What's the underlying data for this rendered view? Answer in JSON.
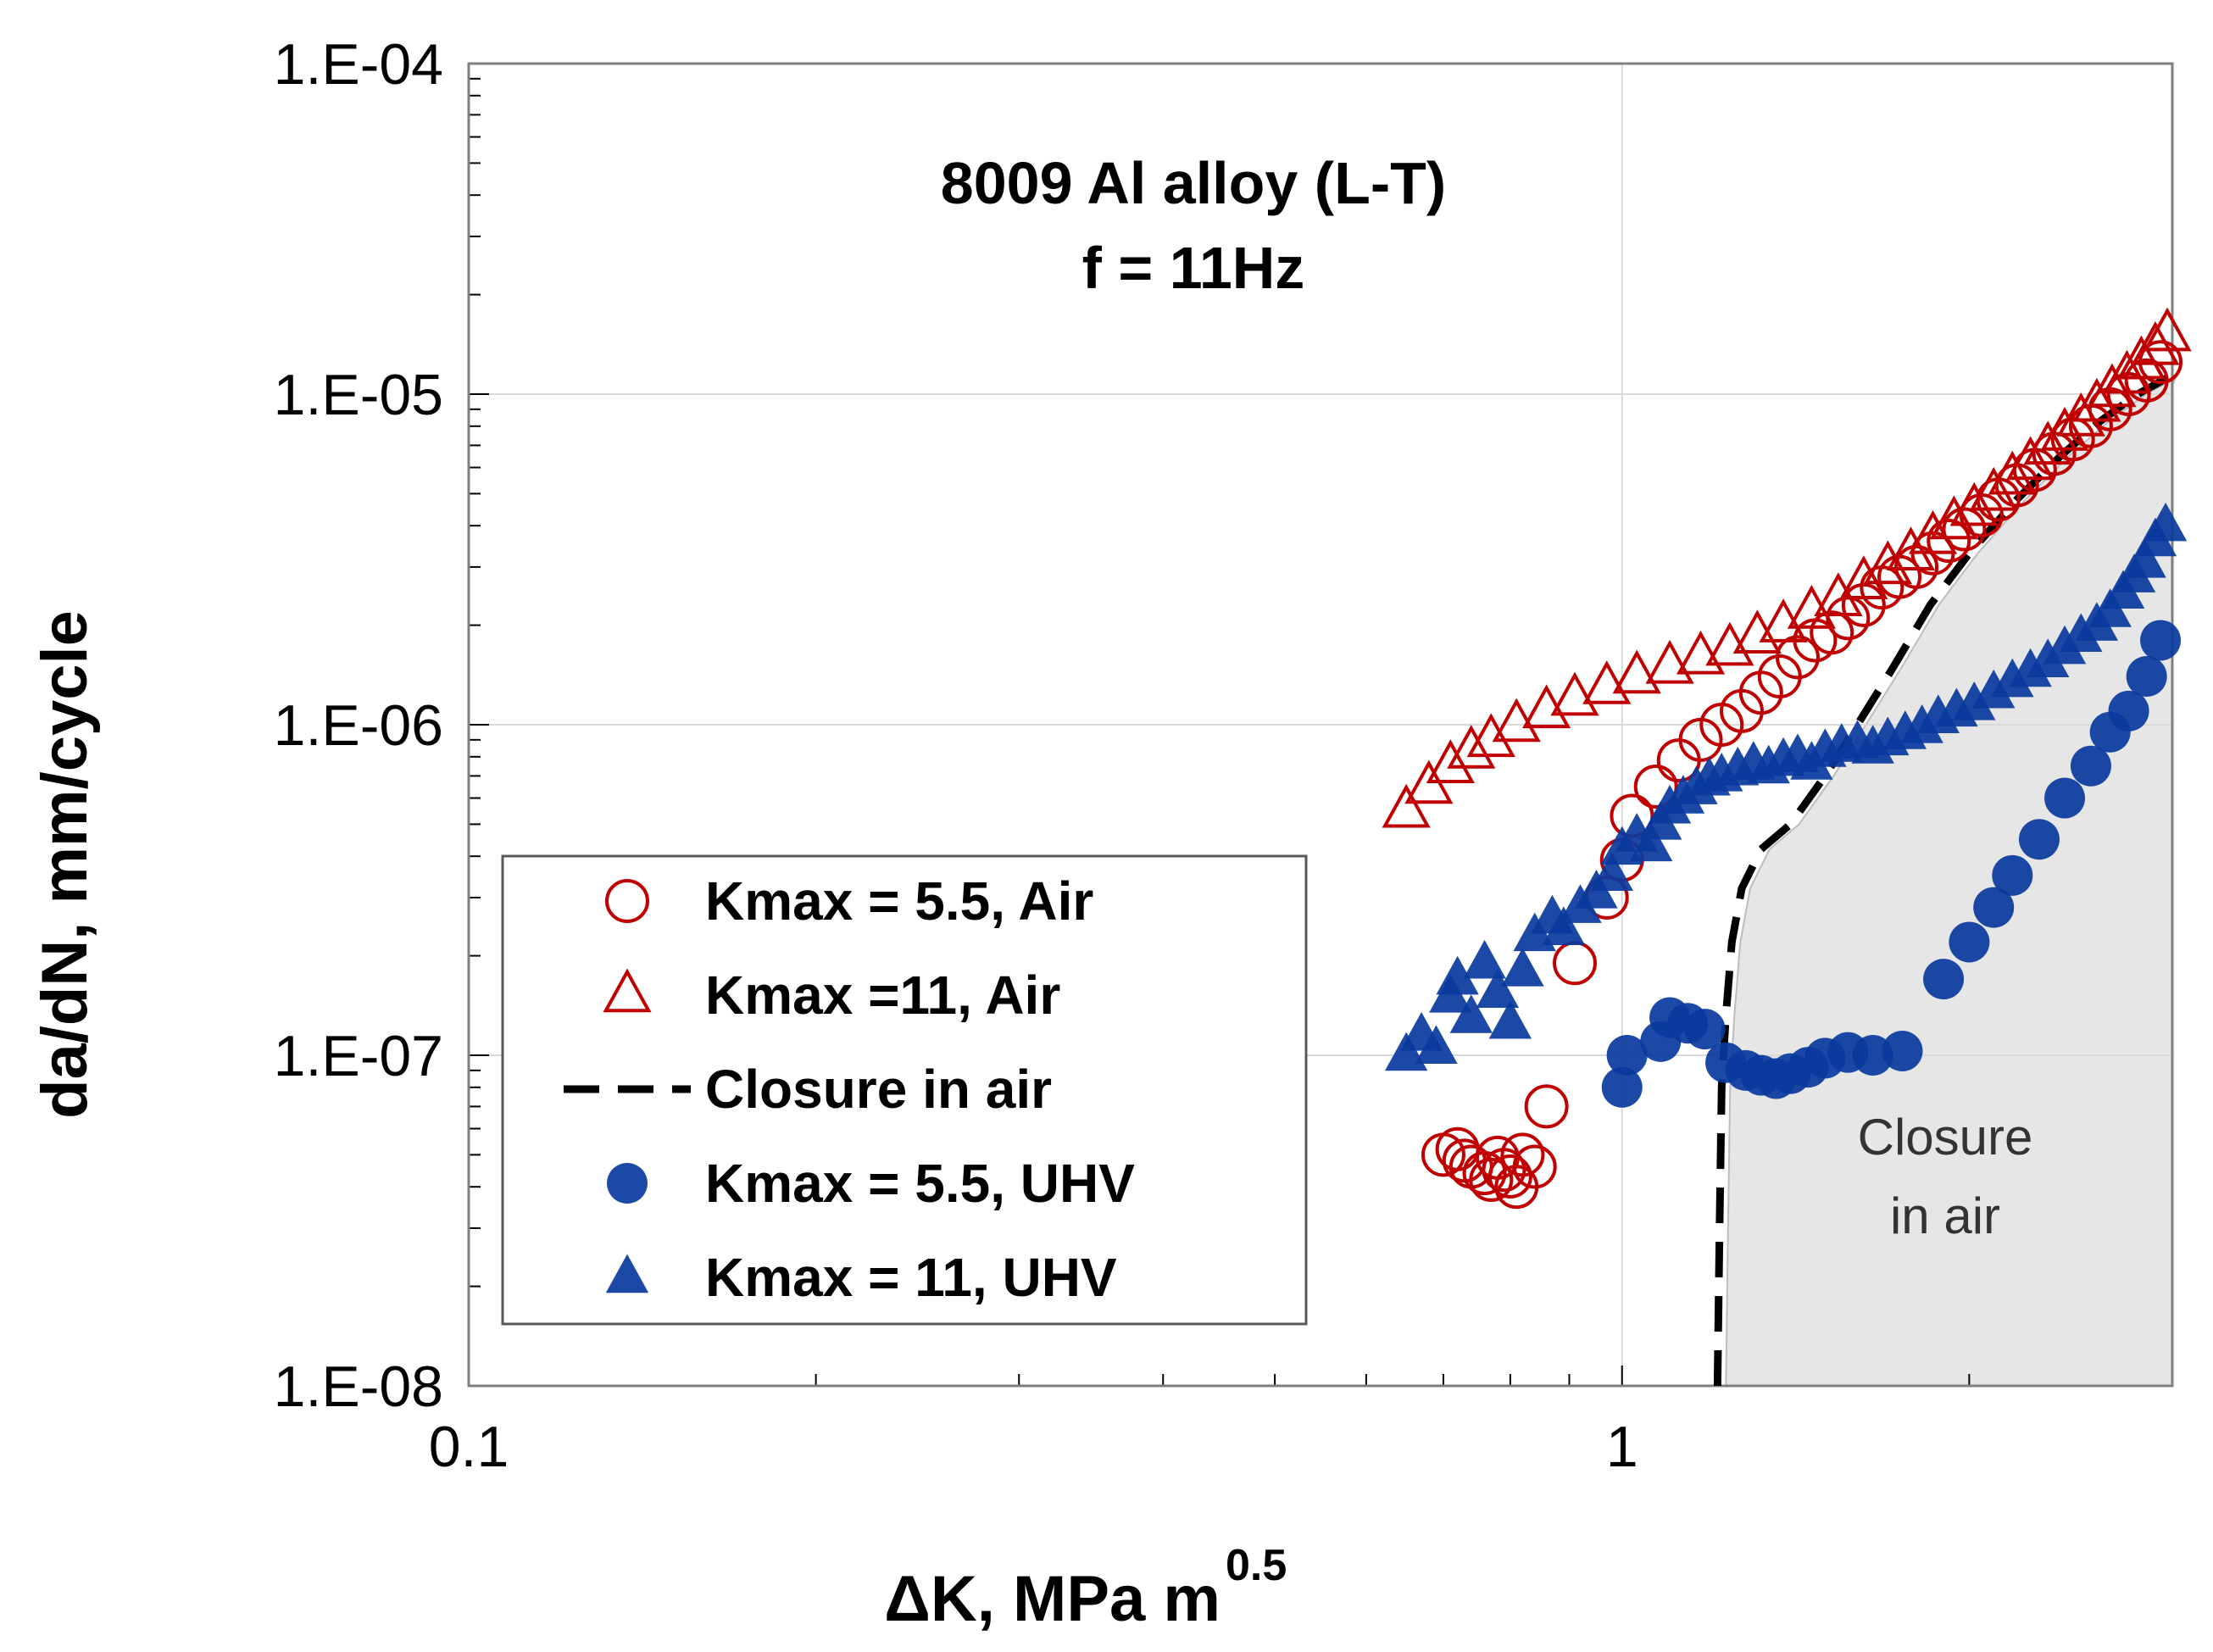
{
  "chart_data": {
    "type": "scatter",
    "title_line1": "8009 Al alloy (L-T)",
    "title_line2": "f = 11Hz",
    "xlabel_main": "ΔK, MPa m",
    "xlabel_sup": "0.5",
    "ylabel": "da/dN, mm/cycle",
    "xscale": "log",
    "yscale": "log",
    "xlim": [
      0.1,
      3
    ],
    "ylim": [
      1e-08,
      0.0001
    ],
    "x_tick_labels": [
      {
        "value": 0.1,
        "label": "0.1"
      },
      {
        "value": 1,
        "label": "1"
      }
    ],
    "y_tick_labels": [
      {
        "value": 0.0001,
        "label": "1.E-04"
      },
      {
        "value": 1e-05,
        "label": "1.E-05"
      },
      {
        "value": 1e-06,
        "label": "1.E-06"
      },
      {
        "value": 1e-07,
        "label": "1.E-07"
      },
      {
        "value": 1e-08,
        "label": "1.E-08"
      }
    ],
    "grid": true,
    "legend_position": "bottom-left",
    "colors": {
      "red": "#c00000",
      "blue": "#0a3a9e",
      "shade": "#e6e6e6"
    },
    "shaded_region_label_line1": "Closure",
    "shaded_region_label_line2": "in air",
    "series": [
      {
        "name": "Kmax = 5.5, Air",
        "marker": "open-circle",
        "color": "#c00000",
        "points": [
          [
            0.7,
            5e-08
          ],
          [
            0.72,
            5.2e-08
          ],
          [
            0.73,
            4.8e-08
          ],
          [
            0.74,
            4.6e-08
          ],
          [
            0.76,
            4.4e-08
          ],
          [
            0.77,
            4.2e-08
          ],
          [
            0.78,
            4.9e-08
          ],
          [
            0.79,
            4.5e-08
          ],
          [
            0.8,
            4.3e-08
          ],
          [
            0.81,
            4e-08
          ],
          [
            0.82,
            5e-08
          ],
          [
            0.84,
            4.6e-08
          ],
          [
            0.86,
            7e-08
          ],
          [
            0.91,
            1.9e-07
          ],
          [
            0.97,
            3e-07
          ],
          [
            1.0,
            3.9e-07
          ],
          [
            1.02,
            5.3e-07
          ],
          [
            1.07,
            6.5e-07
          ],
          [
            1.12,
            7.8e-07
          ],
          [
            1.17,
            9e-07
          ],
          [
            1.22,
            1e-06
          ],
          [
            1.27,
            1.1e-06
          ],
          [
            1.32,
            1.25e-06
          ],
          [
            1.37,
            1.4e-06
          ],
          [
            1.42,
            1.6e-06
          ],
          [
            1.47,
            1.8e-06
          ],
          [
            1.52,
            1.9e-06
          ],
          [
            1.57,
            2.1e-06
          ],
          [
            1.62,
            2.3e-06
          ],
          [
            1.68,
            2.6e-06
          ],
          [
            1.74,
            2.8e-06
          ],
          [
            1.8,
            3e-06
          ],
          [
            1.86,
            3.3e-06
          ],
          [
            1.92,
            3.6e-06
          ],
          [
            1.98,
            3.9e-06
          ],
          [
            2.05,
            4.3e-06
          ],
          [
            2.12,
            4.8e-06
          ],
          [
            2.2,
            5.3e-06
          ],
          [
            2.28,
            5.9e-06
          ],
          [
            2.37,
            6.6e-06
          ],
          [
            2.46,
            7.3e-06
          ],
          [
            2.55,
            8e-06
          ],
          [
            2.65,
            9e-06
          ],
          [
            2.75,
            1e-05
          ],
          [
            2.85,
            1.1e-05
          ],
          [
            2.93,
            1.25e-05
          ]
        ]
      },
      {
        "name": "Kmax =11, Air",
        "marker": "open-triangle",
        "color": "#c00000",
        "points": [
          [
            0.65,
            5.5e-07
          ],
          [
            0.68,
            6.5e-07
          ],
          [
            0.71,
            7.5e-07
          ],
          [
            0.74,
            8.3e-07
          ],
          [
            0.77,
            9e-07
          ],
          [
            0.81,
            1e-06
          ],
          [
            0.86,
            1.1e-06
          ],
          [
            0.91,
            1.2e-06
          ],
          [
            0.97,
            1.3e-06
          ],
          [
            1.03,
            1.4e-06
          ],
          [
            1.1,
            1.5e-06
          ],
          [
            1.17,
            1.6e-06
          ],
          [
            1.24,
            1.7e-06
          ],
          [
            1.31,
            1.85e-06
          ],
          [
            1.38,
            2e-06
          ],
          [
            1.46,
            2.2e-06
          ],
          [
            1.54,
            2.4e-06
          ],
          [
            1.62,
            2.7e-06
          ],
          [
            1.7,
            3e-06
          ],
          [
            1.78,
            3.3e-06
          ],
          [
            1.86,
            3.7e-06
          ],
          [
            1.94,
            4.1e-06
          ],
          [
            2.02,
            4.5e-06
          ],
          [
            2.1,
            5e-06
          ],
          [
            2.18,
            5.6e-06
          ],
          [
            2.26,
            6.2e-06
          ],
          [
            2.34,
            6.9e-06
          ],
          [
            2.42,
            7.6e-06
          ],
          [
            2.5,
            8.4e-06
          ],
          [
            2.58,
            9.3e-06
          ],
          [
            2.66,
            1.03e-05
          ],
          [
            2.74,
            1.13e-05
          ],
          [
            2.82,
            1.25e-05
          ],
          [
            2.9,
            1.38e-05
          ],
          [
            2.97,
            1.52e-05
          ]
        ]
      },
      {
        "name": "Kmax = 5.5, UHV",
        "marker": "filled-circle",
        "color": "#0a3a9e",
        "points": [
          [
            1.0,
            8e-08
          ],
          [
            1.01,
            1e-07
          ],
          [
            1.08,
            1.1e-07
          ],
          [
            1.1,
            1.3e-07
          ],
          [
            1.14,
            1.25e-07
          ],
          [
            1.18,
            1.2e-07
          ],
          [
            1.23,
            9.5e-08
          ],
          [
            1.28,
            9e-08
          ],
          [
            1.32,
            8.7e-08
          ],
          [
            1.36,
            8.5e-08
          ],
          [
            1.4,
            8.8e-08
          ],
          [
            1.45,
            9.2e-08
          ],
          [
            1.5,
            9.8e-08
          ],
          [
            1.57,
            1.02e-07
          ],
          [
            1.65,
            1e-07
          ],
          [
            1.75,
            1.03e-07
          ],
          [
            1.9,
            1.7e-07
          ],
          [
            2.0,
            2.2e-07
          ],
          [
            2.1,
            2.8e-07
          ],
          [
            2.18,
            3.5e-07
          ],
          [
            2.3,
            4.5e-07
          ],
          [
            2.42,
            6e-07
          ],
          [
            2.55,
            7.5e-07
          ],
          [
            2.65,
            9.5e-07
          ],
          [
            2.75,
            1.1e-06
          ],
          [
            2.85,
            1.4e-06
          ],
          [
            2.93,
            1.8e-06
          ]
        ]
      },
      {
        "name": "Kmax = 11, UHV",
        "marker": "filled-triangle",
        "color": "#0a3a9e",
        "points": [
          [
            0.65,
            1e-07
          ],
          [
            0.67,
            1.15e-07
          ],
          [
            0.69,
            1.05e-07
          ],
          [
            0.71,
            1.5e-07
          ],
          [
            0.72,
            1.7e-07
          ],
          [
            0.74,
            1.3e-07
          ],
          [
            0.76,
            1.9e-07
          ],
          [
            0.78,
            1.55e-07
          ],
          [
            0.8,
            1.25e-07
          ],
          [
            0.82,
            1.8e-07
          ],
          [
            0.84,
            2.3e-07
          ],
          [
            0.87,
            2.6e-07
          ],
          [
            0.89,
            2.4e-07
          ],
          [
            0.92,
            2.8e-07
          ],
          [
            0.95,
            3.1e-07
          ],
          [
            0.98,
            3.5e-07
          ],
          [
            1.0,
            4.2e-07
          ],
          [
            1.03,
            4.6e-07
          ],
          [
            1.06,
            4.3e-07
          ],
          [
            1.08,
            5e-07
          ],
          [
            1.1,
            5.6e-07
          ],
          [
            1.13,
            6e-07
          ],
          [
            1.16,
            6.4e-07
          ],
          [
            1.19,
            6.8e-07
          ],
          [
            1.22,
            7e-07
          ],
          [
            1.26,
            7.3e-07
          ],
          [
            1.3,
            7.6e-07
          ],
          [
            1.34,
            7.4e-07
          ],
          [
            1.38,
            7.8e-07
          ],
          [
            1.42,
            8e-07
          ],
          [
            1.46,
            7.6e-07
          ],
          [
            1.5,
            8.3e-07
          ],
          [
            1.55,
            8.6e-07
          ],
          [
            1.6,
            8.8e-07
          ],
          [
            1.65,
            8.5e-07
          ],
          [
            1.7,
            9e-07
          ],
          [
            1.76,
            9.4e-07
          ],
          [
            1.82,
            9.8e-07
          ],
          [
            1.88,
            1.05e-06
          ],
          [
            1.95,
            1.1e-06
          ],
          [
            2.02,
            1.15e-06
          ],
          [
            2.1,
            1.25e-06
          ],
          [
            2.18,
            1.35e-06
          ],
          [
            2.26,
            1.45e-06
          ],
          [
            2.34,
            1.55e-06
          ],
          [
            2.42,
            1.7e-06
          ],
          [
            2.5,
            1.85e-06
          ],
          [
            2.58,
            2e-06
          ],
          [
            2.65,
            2.2e-06
          ],
          [
            2.72,
            2.5e-06
          ],
          [
            2.78,
            2.8e-06
          ],
          [
            2.84,
            3.1e-06
          ],
          [
            2.9,
            3.6e-06
          ],
          [
            2.96,
            4e-06
          ]
        ]
      }
    ],
    "closure_curve": {
      "name": "Closure in air",
      "style": "dashed",
      "color": "#000000",
      "points": [
        [
          1.21,
          1e-08
        ],
        [
          1.215,
          3e-08
        ],
        [
          1.22,
          8e-08
        ],
        [
          1.23,
          1.3e-07
        ],
        [
          1.245,
          2.2e-07
        ],
        [
          1.27,
          3.2e-07
        ],
        [
          1.32,
          4.2e-07
        ],
        [
          1.4,
          5e-07
        ],
        [
          1.5,
          7e-07
        ],
        [
          1.6,
          1e-06
        ],
        [
          1.72,
          1.5e-06
        ],
        [
          1.85,
          2.3e-06
        ],
        [
          2.0,
          3.3e-06
        ],
        [
          2.2,
          4.8e-06
        ],
        [
          2.4,
          6.5e-06
        ],
        [
          2.6,
          8.3e-06
        ],
        [
          2.8,
          1e-05
        ],
        [
          2.97,
          1.12e-05
        ]
      ]
    }
  }
}
